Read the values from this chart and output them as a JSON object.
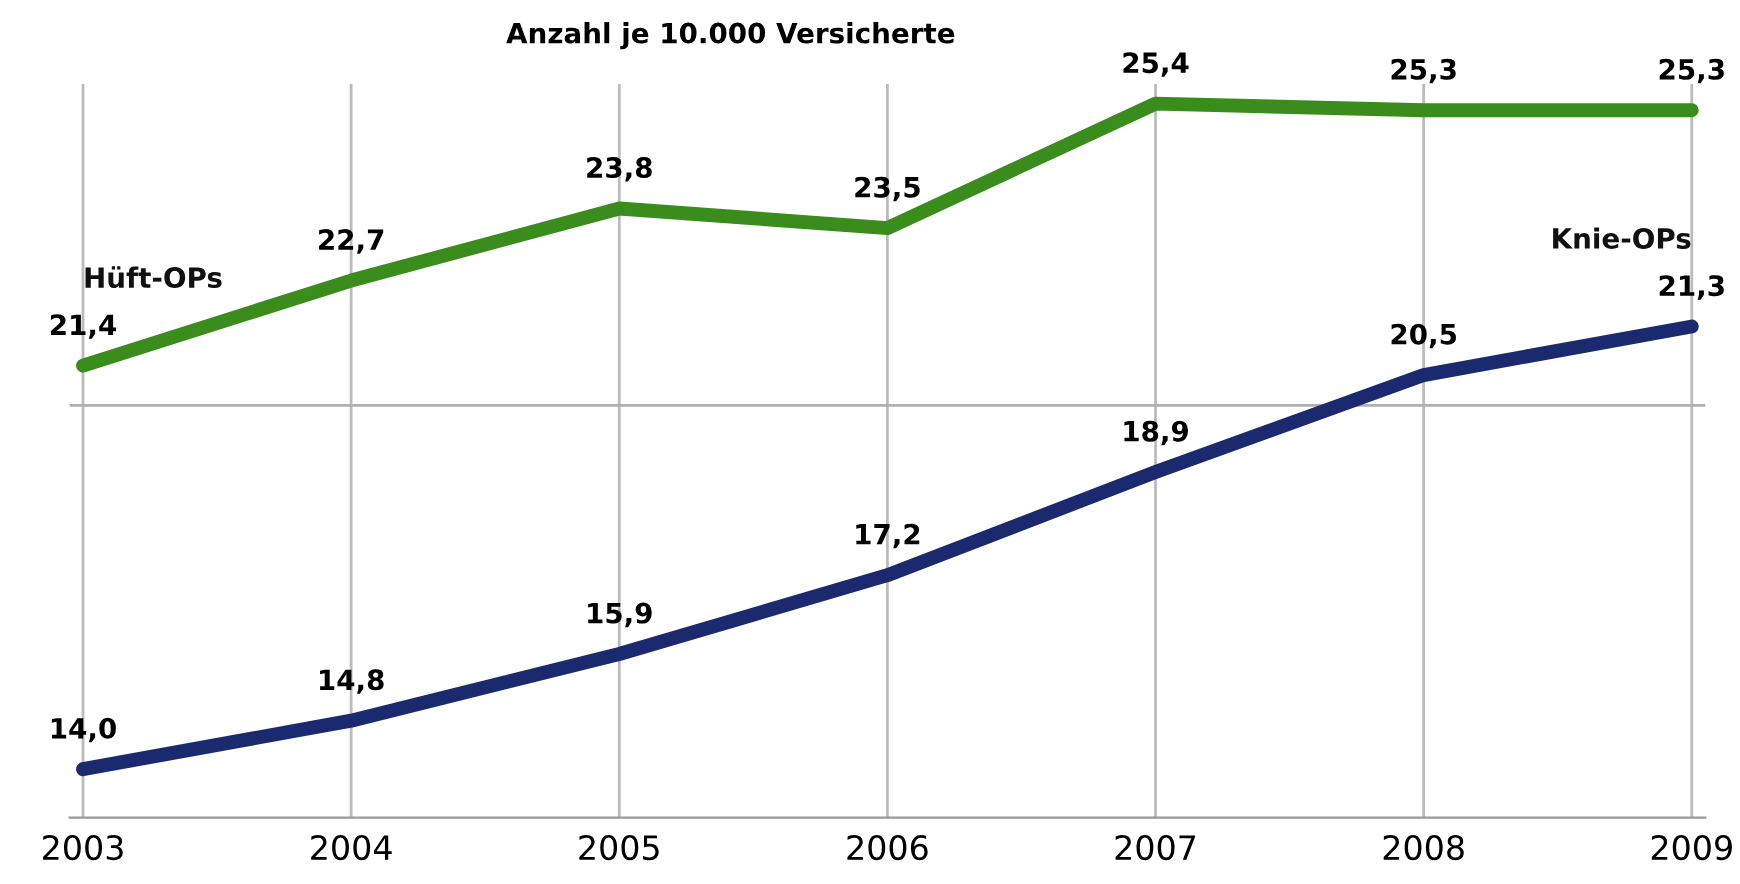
{
  "chart_data": {
    "type": "line",
    "title": "Anzahl je 10.000 Versicherte",
    "categories": [
      "2003",
      "2004",
      "2005",
      "2006",
      "2007",
      "2008",
      "2009"
    ],
    "series": [
      {
        "name": "Hüft-OPs",
        "color": "#3a8c1c",
        "axis": "y2",
        "values": [
          21.4,
          22.7,
          23.8,
          23.5,
          25.4,
          25.3,
          25.3
        ],
        "value_labels": [
          "21,4",
          "22,7",
          "23,8",
          "23,5",
          "25,4",
          "25,3",
          "25,3"
        ]
      },
      {
        "name": "Knie-OPs",
        "color": "#1b2a6e",
        "values": [
          14.0,
          14.8,
          15.9,
          17.2,
          18.9,
          20.5,
          21.3
        ],
        "value_labels": [
          "14,0",
          "14,8",
          "15,9",
          "17,2",
          "18,9",
          "20,5",
          "21,3"
        ]
      }
    ],
    "ylim": [
      13.2,
      25.3
    ],
    "y2lim": [
      14.5,
      25.7
    ],
    "ref_lines": [
      {
        "axis": "y",
        "value": 20,
        "color": "#b0b0b0"
      }
    ],
    "grid": "x",
    "marker": "none",
    "line_style": "solid"
  }
}
